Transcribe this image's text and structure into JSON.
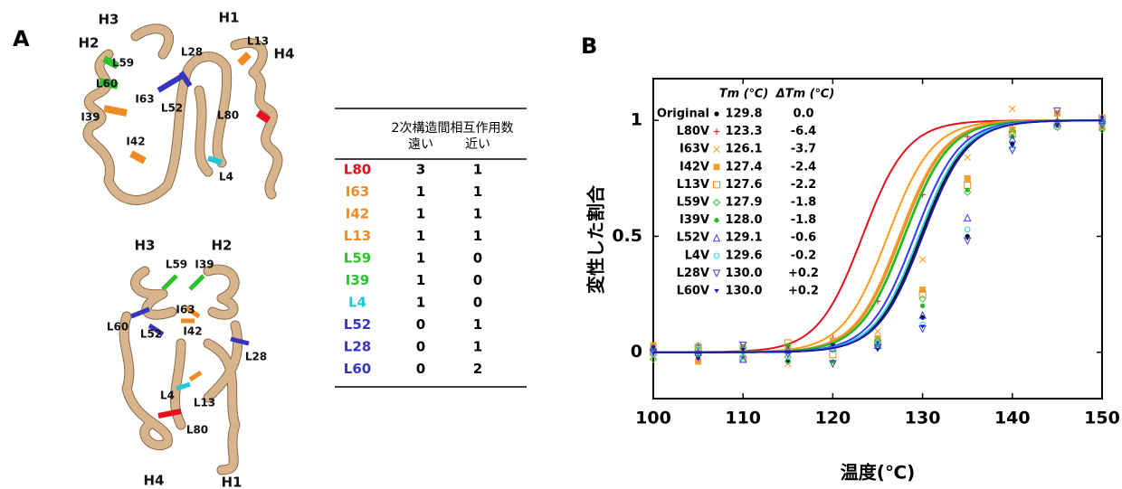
{
  "panel_a": {
    "label": "A",
    "top_structure": {
      "labels": [
        "H3",
        "H1",
        "H2",
        "H4",
        "L13",
        "L28",
        "L59",
        "L60",
        "I63",
        "L52",
        "L80",
        "I39",
        "I42",
        "L4"
      ]
    },
    "bottom_structure": {
      "labels": [
        "H3",
        "H2",
        "L59",
        "I39",
        "L60",
        "I63",
        "L52",
        "I42",
        "L28",
        "L4",
        "L13",
        "L80",
        "H4",
        "H1"
      ]
    },
    "table": {
      "header": "2次構造間相互作用数",
      "columns": [
        "遠い",
        "近い"
      ],
      "rows": [
        {
          "name": "L80",
          "color": "#e8101c",
          "far": 3,
          "near": 1
        },
        {
          "name": "I63",
          "color": "#f08a24",
          "far": 1,
          "near": 1
        },
        {
          "name": "I42",
          "color": "#f08a24",
          "far": 1,
          "near": 1
        },
        {
          "name": "L13",
          "color": "#f08a24",
          "far": 1,
          "near": 1
        },
        {
          "name": "L59",
          "color": "#2fc22f",
          "far": 1,
          "near": 0
        },
        {
          "name": "I39",
          "color": "#2fc22f",
          "far": 1,
          "near": 0
        },
        {
          "name": "L4",
          "color": "#22c8d8",
          "far": 1,
          "near": 0
        },
        {
          "name": "L52",
          "color": "#3535c0",
          "far": 0,
          "near": 1
        },
        {
          "name": "L28",
          "color": "#3535c0",
          "far": 0,
          "near": 1
        },
        {
          "name": "L60",
          "color": "#3535c0",
          "far": 0,
          "near": 2
        }
      ]
    }
  },
  "chart_data": {
    "type": "scatter",
    "panel_label": "B",
    "x_label": "温度(℃)",
    "y_label": "変性した割合",
    "legend_headers": [
      "Tm (℃)",
      "ΔTm (℃)"
    ],
    "xlim": [
      100,
      150
    ],
    "xticks": [
      100,
      110,
      120,
      130,
      140,
      150
    ],
    "ylim": [
      -0.2,
      1.18
    ],
    "yticks": [
      0,
      0.5,
      1
    ],
    "x": [
      100,
      105,
      110,
      115,
      120,
      125,
      130,
      135,
      140,
      145,
      150
    ],
    "series": [
      {
        "name": "Original",
        "color": "#000000",
        "marker": "dot",
        "tm": {
          "value": 129.8,
          "label": "129.8"
        },
        "dtm": {
          "value": 0,
          "label": "0.0"
        },
        "values": [
          0.02,
          -0.03,
          0.01,
          -0.04,
          0.03,
          0.05,
          0.15,
          0.5,
          0.9,
          0.98,
          1.0
        ]
      },
      {
        "name": "L80V",
        "color": "#e8101c",
        "marker": "plus",
        "tm": {
          "value": 123.3,
          "label": "123.3"
        },
        "dtm": {
          "value": -6.4,
          "label": "-6.4"
        },
        "values": [
          0.01,
          0.03,
          -0.02,
          0.02,
          0.06,
          0.22,
          0.68,
          0.93,
          0.97,
          1.02,
          0.98
        ]
      },
      {
        "name": "I63V",
        "color": "#ff9a1a",
        "marker": "x",
        "tm": {
          "value": 126.1,
          "label": "126.1"
        },
        "dtm": {
          "value": -3.7,
          "label": "-3.7"
        },
        "values": [
          -0.02,
          0.01,
          0.03,
          -0.05,
          0.02,
          0.09,
          0.4,
          0.84,
          1.05,
          0.99,
          1.0
        ]
      },
      {
        "name": "I42V",
        "color": "#f0a030",
        "marker": "square",
        "tm": {
          "value": 127.4,
          "label": "127.4"
        },
        "dtm": {
          "value": -2.4,
          "label": "-2.4"
        },
        "values": [
          0.03,
          -0.04,
          0.02,
          0.01,
          0.05,
          0.06,
          0.27,
          0.75,
          0.96,
          1.03,
          0.97
        ]
      },
      {
        "name": "L13V",
        "color": "#f08a24",
        "marker": "square-open",
        "tm": {
          "value": 127.6,
          "label": "127.6"
        },
        "dtm": {
          "value": -2.2,
          "label": "-2.2"
        },
        "values": [
          0.0,
          0.02,
          -0.03,
          0.04,
          -0.01,
          0.04,
          0.25,
          0.72,
          0.94,
          0.98,
          1.01
        ]
      },
      {
        "name": "L59V",
        "color": "#33cc33",
        "marker": "diamond-open",
        "tm": {
          "value": 127.9,
          "label": "127.9"
        },
        "dtm": {
          "value": -1.8,
          "label": "-1.8"
        },
        "values": [
          -0.03,
          0.01,
          0.02,
          -0.02,
          0.03,
          0.05,
          0.23,
          0.69,
          0.95,
          0.97,
          0.96
        ]
      },
      {
        "name": "I39V",
        "color": "#22b822",
        "marker": "circle",
        "tm": {
          "value": 128.0,
          "label": "128.0"
        },
        "dtm": {
          "value": -1.8,
          "label": "-1.8"
        },
        "values": [
          0.01,
          -0.02,
          0.0,
          0.03,
          -0.04,
          0.03,
          0.2,
          0.7,
          0.93,
          1.0,
          0.99
        ]
      },
      {
        "name": "L52V",
        "color": "#3a3aff",
        "marker": "triangle-open",
        "tm": {
          "value": 129.1,
          "label": "129.1"
        },
        "dtm": {
          "value": -0.6,
          "label": "-0.6"
        },
        "values": [
          0.02,
          0.0,
          -0.03,
          0.01,
          0.02,
          0.03,
          0.16,
          0.58,
          0.92,
          0.99,
          1.0
        ]
      },
      {
        "name": "L4V",
        "color": "#1fd0e0",
        "marker": "circle-open",
        "tm": {
          "value": 129.6,
          "label": "129.6"
        },
        "dtm": {
          "value": -0.2,
          "label": "-0.2"
        },
        "values": [
          -0.01,
          0.03,
          -0.02,
          -0.04,
          0.01,
          0.04,
          0.12,
          0.53,
          0.88,
          0.97,
          1.0
        ]
      },
      {
        "name": "L28V",
        "color": "#4040e0",
        "marker": "triangle-down-open",
        "tm": {
          "value": 130.0,
          "label": "130.0"
        },
        "dtm": {
          "value": 0.2,
          "label": "+0.2"
        },
        "values": [
          0.0,
          -0.02,
          0.03,
          -0.01,
          -0.05,
          0.02,
          0.1,
          0.48,
          0.87,
          1.04,
          0.98
        ]
      },
      {
        "name": "L60V",
        "color": "#1a1aa0",
        "marker": "triangle",
        "tm": {
          "value": 130.0,
          "label": "130.0"
        },
        "dtm": {
          "value": 0.2,
          "label": "+0.2"
        },
        "values": [
          0.02,
          -0.03,
          0.01,
          0.0,
          0.03,
          0.01,
          0.11,
          0.49,
          0.89,
          0.98,
          1.01
        ]
      }
    ]
  }
}
